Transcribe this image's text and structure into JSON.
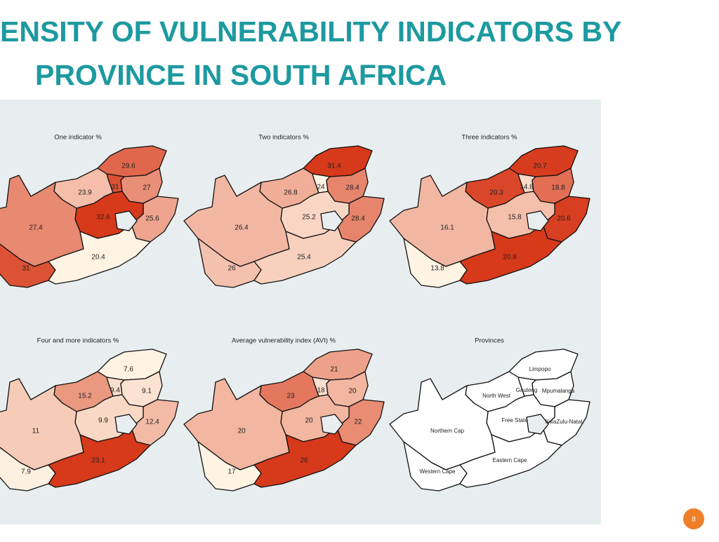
{
  "title": {
    "lines": [
      "ENSITY OF VULNERABILITY INDICATORS BY",
      "PROVINCE IN SOUTH AFRICA"
    ]
  },
  "color_scale": [
    "#fff4e4",
    "#d7391b"
  ],
  "panels": [
    {
      "title": "One indicator %",
      "values": [
        29.6,
        23.9,
        31,
        27,
        25.6,
        32.6,
        27.4,
        31,
        20.4
      ]
    },
    {
      "title": "Two indicators %",
      "values": [
        31.4,
        26.8,
        24,
        28.4,
        28.4,
        25.2,
        26.4,
        26,
        25.4
      ]
    },
    {
      "title": "Three indicators %",
      "values": [
        20.7,
        20.3,
        14.8,
        18.8,
        20.6,
        15.8,
        16.1,
        13.8,
        20.8
      ]
    },
    {
      "title": "Four and more indicators %",
      "values": [
        7.6,
        15.2,
        9.4,
        9.1,
        12.4,
        9.9,
        11,
        7.9,
        23.1
      ]
    },
    {
      "title": "Average vulnerability index (AVI)  %",
      "values": [
        21,
        23,
        18,
        20,
        22,
        20,
        20,
        17,
        26
      ]
    }
  ],
  "provinces_panel": {
    "title": "Provinces",
    "names": [
      "Limpopo",
      "North West",
      "Gauteng",
      "Mpumalanga",
      "KwaZulu-Natal",
      "Free State",
      "Northern Cap",
      "Western Cape",
      "Eastern Cape"
    ]
  },
  "page_number": 8
}
